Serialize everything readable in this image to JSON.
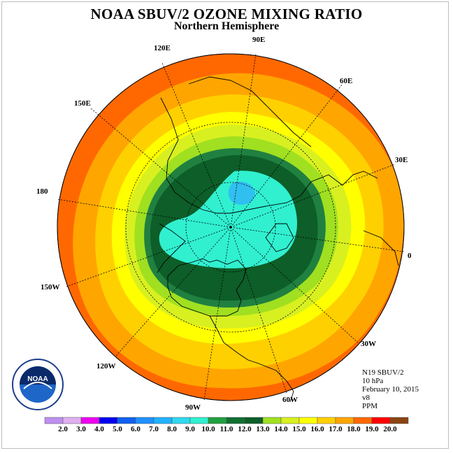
{
  "title": "NOAA SBUV/2 OZONE MIXING RATIO",
  "subtitle": "Northern Hemisphere",
  "longitude_labels": {
    "e90": "90E",
    "e60": "60E",
    "e30": "30E",
    "e0": "0",
    "w30": "30W",
    "w60": "60W",
    "w90": "90W",
    "w120": "120W",
    "w150": "150W",
    "e180": "180",
    "e150": "150E",
    "e120": "120E"
  },
  "info": {
    "instrument": "N19 SBUV/2",
    "pressure": "10 hPa",
    "date": "February 10, 2015",
    "version": "v8",
    "units": "PPM"
  },
  "logo": {
    "text": "NOAA"
  },
  "colorbar": {
    "labels": [
      "2.0",
      "3.0",
      "4.0",
      "5.0",
      "6.0",
      "7.0",
      "8.0",
      "9.0",
      "10.0",
      "11.0",
      "12.0",
      "13.0",
      "14.0",
      "15.0",
      "16.0",
      "17.0",
      "18.0",
      "19.0",
      "20.0"
    ],
    "colors": [
      "#bf8fef",
      "#dfb0f0",
      "#ef00ef",
      "#0000ef",
      "#1060f0",
      "#1e90ff",
      "#20b2ff",
      "#30d8f0",
      "#30f0d0",
      "#20a040",
      "#107030",
      "#0d5e28",
      "#a0e020",
      "#d8f020",
      "#ffff00",
      "#ffd000",
      "#ffa500",
      "#ff6800",
      "#ff0000",
      "#8b4513"
    ]
  },
  "map_colors": {
    "low_fill": "#30f0d0",
    "lowest_fill": "#30c0f0",
    "mid_dark": "#0d5e28",
    "mid_green": "#208040",
    "light_green": "#a0e020",
    "yellow_green": "#d8f020",
    "yellow": "#ffff00",
    "gold": "#ffd000",
    "orange": "#ffa500",
    "dark_orange": "#ff6800",
    "red": "#ff1000"
  }
}
